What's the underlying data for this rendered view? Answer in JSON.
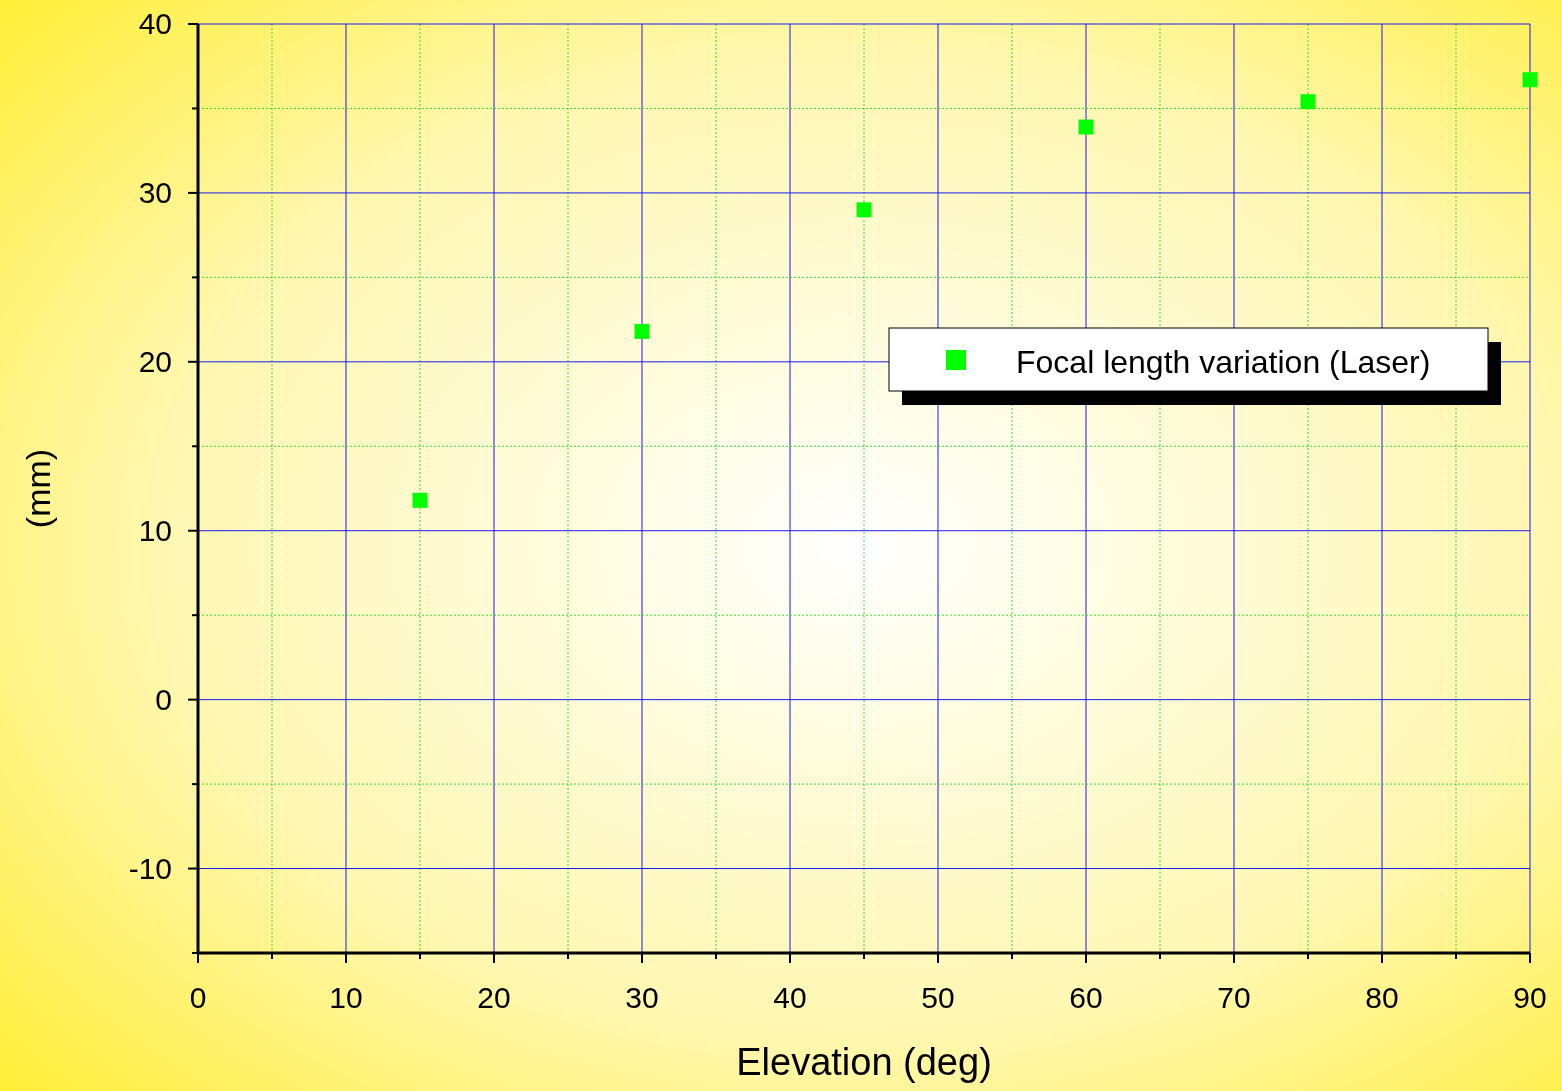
{
  "chart_data": {
    "type": "scatter",
    "xlabel": "Elevation (deg)",
    "ylabel": "(mm)",
    "x": [
      15,
      30,
      45,
      60,
      75,
      90
    ],
    "series": [
      {
        "name": "Focal length variation (Laser)",
        "color": "#00ff00",
        "values": [
          11.8,
          21.8,
          29.0,
          33.9,
          35.4,
          36.7
        ]
      }
    ],
    "xlim": [
      0,
      90
    ],
    "xticks": [
      0,
      {
        "value": 5,
        "label": null
      },
      10,
      {
        "value": 15,
        "label": null
      },
      20,
      {
        "value": 25,
        "label": null
      },
      30,
      {
        "value": 35,
        "label": null
      },
      40,
      {
        "value": 45,
        "label": null
      },
      50,
      {
        "value": 55,
        "label": null
      },
      60,
      {
        "value": 65,
        "label": null
      },
      70,
      {
        "value": 75,
        "label": null
      },
      80,
      {
        "value": 85,
        "label": null
      },
      90
    ],
    "ylim": [
      -15,
      40
    ],
    "yticks": [
      {
        "value": -15,
        "label": null
      },
      -10,
      {
        "value": -5,
        "label": null
      },
      0,
      {
        "value": 5,
        "label": null
      },
      10,
      {
        "value": 15,
        "label": null
      },
      20,
      {
        "value": 25,
        "label": null
      },
      30,
      {
        "value": 35,
        "label": null
      },
      40
    ],
    "grid": true,
    "legend": "right",
    "marker": "square"
  }
}
